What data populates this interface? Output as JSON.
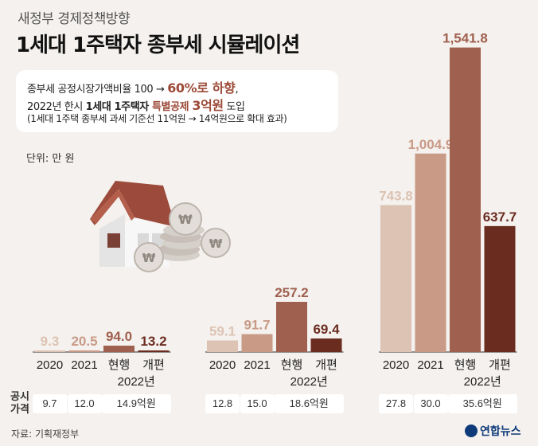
{
  "header": {
    "subtitle": "새정부 경제정책방향",
    "title": "1세대 1주택자 종부세 시뮬레이션"
  },
  "note": {
    "line1_a": "종부세 공정시장가액비율 100 → ",
    "line1_b": "60%로 하향",
    "line1_c": ",",
    "line2_a": "2022년 한시 ",
    "line2_b": "1세대 1주택자 ",
    "line2_c": "특별공제 ",
    "line2_d": "3억원",
    "line2_e": " 도입",
    "line3": "(1세대 1주택 종부세 과세 기준선 11억원 → 14억원으로 확대 효과)"
  },
  "unit": "단위: 만 원",
  "price_label": "공시 가격",
  "source": "자료: 기획재정부",
  "logo": "연합뉴스",
  "colors": {
    "y2020": "#dcc3b3",
    "y2021": "#c99a86",
    "current": "#a0604f",
    "reform": "#6b2c20",
    "bg": "#f4f1ee"
  },
  "chart_data": {
    "type": "bar",
    "unit": "만 원",
    "groups": [
      {
        "categories": [
          "2020",
          "2021",
          "현행",
          "개편"
        ],
        "year_label": "2022년",
        "values": [
          9.3,
          20.5,
          94.0,
          13.2
        ],
        "value_labels": [
          "9.3",
          "20.5",
          "94.0",
          "13.2"
        ],
        "prices": [
          "9.7",
          "12.0",
          "14.9억원"
        ]
      },
      {
        "categories": [
          "2020",
          "2021",
          "현행",
          "개편"
        ],
        "year_label": "2022년",
        "values": [
          59.1,
          91.7,
          257.2,
          69.4
        ],
        "value_labels": [
          "59.1",
          "91.7",
          "257.2",
          "69.4"
        ],
        "prices": [
          "12.8",
          "15.0",
          "18.6억원"
        ]
      },
      {
        "categories": [
          "2020",
          "2021",
          "현행",
          "개편"
        ],
        "year_label": "2022년",
        "values": [
          743.8,
          1004.9,
          1541.8,
          637.7
        ],
        "value_labels": [
          "743.8",
          "1,004.9",
          "1,541.8",
          "637.7"
        ],
        "prices": [
          "27.8",
          "30.0",
          "35.6억원"
        ]
      }
    ]
  }
}
